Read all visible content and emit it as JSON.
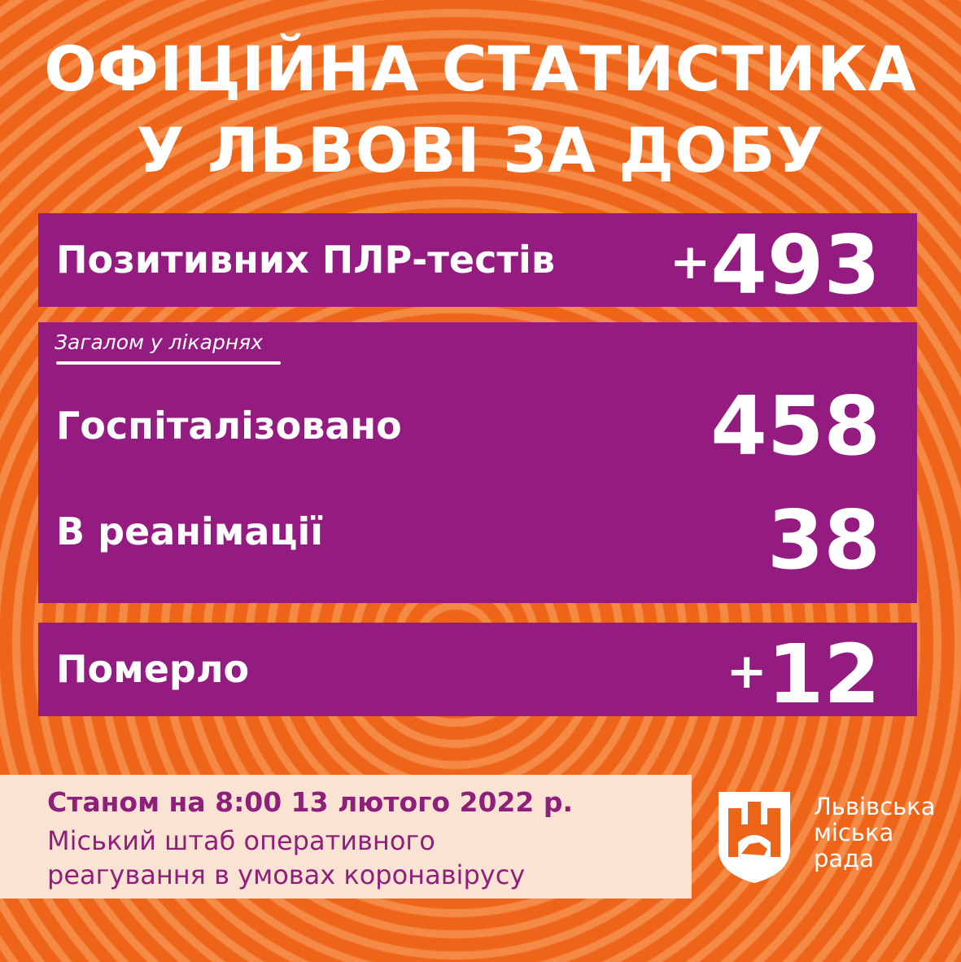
{
  "title": {
    "line1": "ОФІЦІЙНА СТАТИСТИКА",
    "line2": "У ЛЬВОВІ ЗА ДОБУ"
  },
  "tests": {
    "label": "Позитивних ПЛР-тестів",
    "prefix": "+",
    "value": "493"
  },
  "hospitals": {
    "subtitle": "Загалом у лікарнях",
    "hospitalized_label": "Госпіталізовано",
    "hospitalized_value": "458",
    "icu_label": "В реанімації",
    "icu_value": "38"
  },
  "deaths": {
    "label": "Померло",
    "prefix": "+",
    "value": "12"
  },
  "footer": {
    "date": "Станом на 8:00 13 лютого 2022 р.",
    "line1": "Міський штаб оперативного",
    "line2": "реагування в умовах коронавірусу"
  },
  "logo": {
    "line1": "Львівська",
    "line2": "міська",
    "line3": "рада",
    "icon": "lviv-coat-of-arms-icon"
  },
  "colors": {
    "background": "#ee6418",
    "panel": "#941b80",
    "footer_bg": "#fbe3d3",
    "footer_text": "#8e1f7a"
  }
}
